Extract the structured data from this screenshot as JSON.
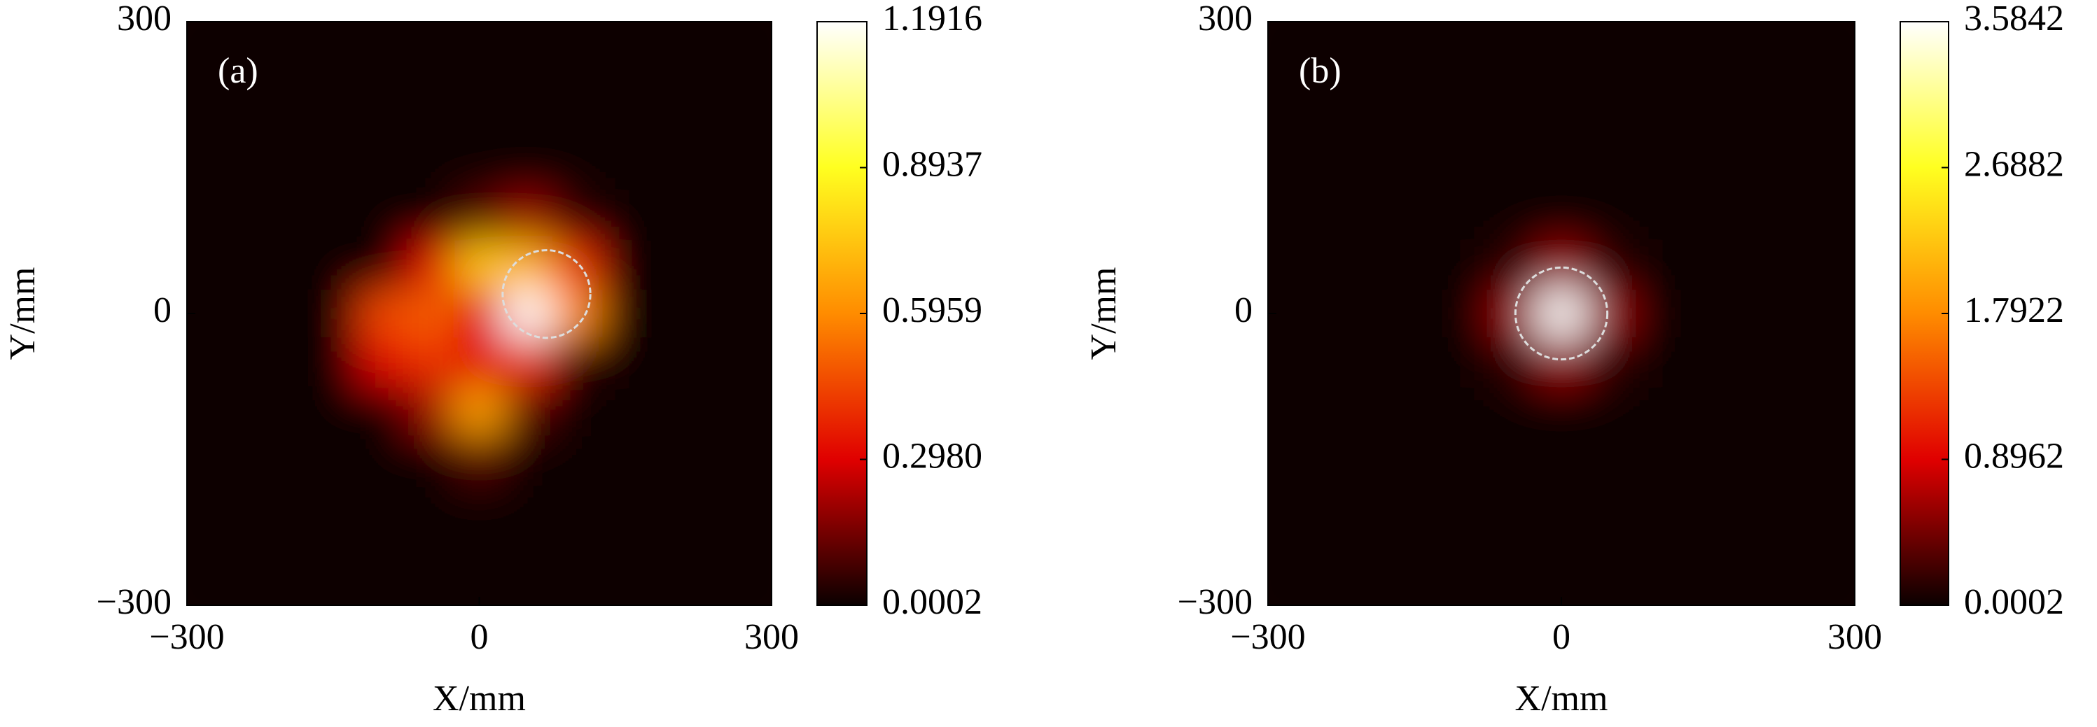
{
  "chart_data": [
    {
      "type": "heatmap",
      "panel_label": "(a)",
      "xlabel": "X/mm",
      "ylabel": "Y/mm",
      "xlim": [
        -300,
        300
      ],
      "ylim": [
        -300,
        300
      ],
      "xticks": [
        {
          "value": -300,
          "label": "−300"
        },
        0,
        300
      ],
      "yticks": [
        {
          "value": -300,
          "label": "−300"
        },
        0,
        300
      ],
      "x": [
        -300,
        -250,
        -200,
        -150,
        -100,
        -50,
        0,
        50,
        100,
        150,
        200,
        250,
        300
      ],
      "y": [
        300,
        250,
        200,
        150,
        100,
        50,
        0,
        -50,
        -100,
        -150,
        -200,
        -250,
        -300
      ],
      "z": [
        [
          0,
          0,
          0,
          0,
          0,
          0,
          0,
          0,
          0,
          0,
          0,
          0,
          0
        ],
        [
          0,
          0,
          0,
          0,
          0,
          0,
          0,
          0,
          0,
          0,
          0,
          0,
          0
        ],
        [
          0,
          0,
          0,
          0,
          0,
          0,
          0,
          0,
          0,
          0,
          0,
          0,
          0
        ],
        [
          0,
          0,
          0,
          0,
          0,
          0,
          0,
          0,
          0,
          0,
          0,
          0,
          0
        ],
        [
          0,
          0,
          0,
          0,
          0,
          0,
          0.1,
          0.2,
          0.05,
          0,
          0,
          0,
          0
        ],
        [
          0,
          0,
          0,
          0,
          0,
          0.3,
          0.75,
          0.7,
          0.4,
          0,
          0,
          0,
          0
        ],
        [
          0,
          0,
          0,
          0,
          0.45,
          0.5,
          0.3,
          1.19,
          0.6,
          0,
          0,
          0,
          0
        ],
        [
          0,
          0,
          0,
          0,
          0.3,
          0.4,
          0.3,
          0.4,
          0.05,
          0,
          0,
          0,
          0
        ],
        [
          0,
          0,
          0,
          0,
          0,
          0.2,
          0.65,
          0.1,
          0,
          0,
          0,
          0,
          0
        ],
        [
          0,
          0,
          0,
          0,
          0,
          0,
          0.1,
          0,
          0,
          0,
          0,
          0,
          0
        ],
        [
          0,
          0,
          0,
          0,
          0,
          0,
          0,
          0,
          0,
          0,
          0,
          0,
          0
        ],
        [
          0,
          0,
          0,
          0,
          0,
          0,
          0,
          0,
          0,
          0,
          0,
          0,
          0
        ],
        [
          0,
          0,
          0,
          0,
          0,
          0,
          0,
          0,
          0,
          0,
          0,
          0,
          0
        ]
      ],
      "circle": {
        "center": [
          69,
          20
        ],
        "radius": 45
      },
      "colormap": [
        "#0a0000",
        "#e00000",
        "#ff8c00",
        "#ffff20",
        "#ffffff"
      ],
      "clim": [
        0.0002,
        1.1916
      ],
      "cticks": [
        0.0002,
        {
          "value": 0.298,
          "label": "0.2980"
        },
        0.5959,
        0.8937,
        1.1916
      ]
    },
    {
      "type": "heatmap",
      "panel_label": "(b)",
      "xlabel": "X/mm",
      "ylabel": "Y/mm",
      "xlim": [
        -300,
        300
      ],
      "ylim": [
        -300,
        300
      ],
      "xticks": [
        {
          "value": -300,
          "label": "−300"
        },
        0,
        300
      ],
      "yticks": [
        {
          "value": -300,
          "label": "−300"
        },
        0,
        300
      ],
      "x": [
        -300,
        -250,
        -200,
        -150,
        -100,
        -50,
        0,
        50,
        100,
        150,
        200,
        250,
        300
      ],
      "y": [
        300,
        250,
        200,
        150,
        100,
        50,
        0,
        -50,
        -100,
        -150,
        -200,
        -250,
        -300
      ],
      "z": [
        [
          0,
          0,
          0,
          0,
          0,
          0,
          0,
          0,
          0,
          0,
          0,
          0,
          0
        ],
        [
          0,
          0,
          0,
          0,
          0,
          0,
          0,
          0,
          0,
          0,
          0,
          0,
          0
        ],
        [
          0,
          0,
          0,
          0,
          0,
          0,
          0,
          0,
          0,
          0,
          0,
          0,
          0
        ],
        [
          0,
          0,
          0,
          0,
          0,
          0,
          0,
          0,
          0,
          0,
          0,
          0,
          0
        ],
        [
          0,
          0,
          0,
          0,
          0,
          0,
          0,
          0,
          0,
          0,
          0,
          0,
          0
        ],
        [
          0,
          0,
          0,
          0,
          0,
          0.15,
          0.6,
          0.15,
          0,
          0,
          0,
          0,
          0
        ],
        [
          0,
          0,
          0,
          0,
          0,
          0.6,
          3.58,
          0.6,
          0,
          0,
          0,
          0,
          0
        ],
        [
          0,
          0,
          0,
          0,
          0,
          0.15,
          0.6,
          0.15,
          0,
          0,
          0,
          0,
          0
        ],
        [
          0,
          0,
          0,
          0,
          0,
          0,
          0,
          0,
          0,
          0,
          0,
          0,
          0
        ],
        [
          0,
          0,
          0,
          0,
          0,
          0,
          0,
          0,
          0,
          0,
          0,
          0,
          0
        ],
        [
          0,
          0,
          0,
          0,
          0,
          0,
          0,
          0,
          0,
          0,
          0,
          0,
          0
        ],
        [
          0,
          0,
          0,
          0,
          0,
          0,
          0,
          0,
          0,
          0,
          0,
          0,
          0
        ],
        [
          0,
          0,
          0,
          0,
          0,
          0,
          0,
          0,
          0,
          0,
          0,
          0,
          0
        ]
      ],
      "circle": {
        "center": [
          0,
          0
        ],
        "radius": 47
      },
      "colormap": [
        "#0a0000",
        "#e00000",
        "#ff8c00",
        "#ffff20",
        "#ffffff"
      ],
      "clim": [
        0.0002,
        3.5842
      ],
      "cticks": [
        0.0002,
        0.8962,
        1.7922,
        2.6882,
        3.5842
      ]
    }
  ]
}
